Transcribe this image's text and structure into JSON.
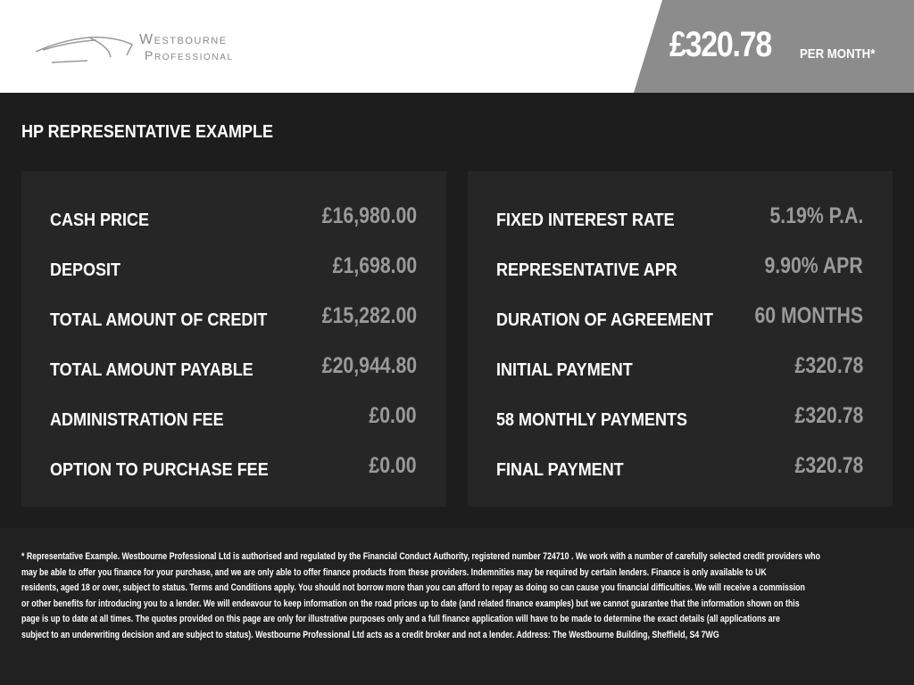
{
  "header": {
    "brand_line1": "Westbourne",
    "brand_line2": "Professional",
    "price": "£320.78",
    "price_suffix": "PER MONTH*"
  },
  "title": "HP REPRESENTATIVE EXAMPLE",
  "left_rows": [
    {
      "label": "CASH PRICE",
      "value": "£16,980.00"
    },
    {
      "label": "DEPOSIT",
      "value": "£1,698.00"
    },
    {
      "label": "TOTAL AMOUNT OF CREDIT",
      "value": "£15,282.00"
    },
    {
      "label": "TOTAL AMOUNT PAYABLE",
      "value": "£20,944.80"
    },
    {
      "label": "ADMINISTRATION FEE",
      "value": "£0.00"
    },
    {
      "label": "OPTION TO PURCHASE FEE",
      "value": "£0.00"
    }
  ],
  "right_rows": [
    {
      "label": "FIXED INTEREST RATE",
      "value": "5.19% P.A."
    },
    {
      "label": "REPRESENTATIVE APR",
      "value": "9.90% APR"
    },
    {
      "label": "DURATION OF AGREEMENT",
      "value": "60 MONTHS"
    },
    {
      "label": "INITIAL PAYMENT",
      "value": "£320.78"
    },
    {
      "label": "58 MONTHLY PAYMENTS",
      "value": "£320.78"
    },
    {
      "label": "FINAL PAYMENT",
      "value": "£320.78"
    }
  ],
  "disclaimer_lines": [
    "* Representative Example. Westbourne Professional Ltd is authorised and regulated by the Financial Conduct Authority, registered number 724710 . We work with a number of carefully selected credit providers who",
    "may be able to offer you finance for your purchase, and we are only able to offer finance products from these providers. Indemnities may be required by certain lenders. Finance is only available to UK",
    "residents, aged 18 or over, subject to status. Terms and Conditions apply. You should not borrow more than you can afford to repay as doing so can cause you financial difficulties. We will receive a commission",
    "or other benefits for introducing you to a lender. We will endeavour to keep information on the road prices up to date (and related finance examples) but we cannot guarantee that the information shown on this",
    "page is up to date at all times. The quotes provided on this page are only for illustrative purposes only and a full finance application will have to be made to determine the exact details (all applications are",
    "subject to an underwriting decision and are subject to status). Westbourne Professional Ltd acts as a credit broker and not a lender. Address: The Westbourne Building, Sheffield, S4 7WG"
  ]
}
